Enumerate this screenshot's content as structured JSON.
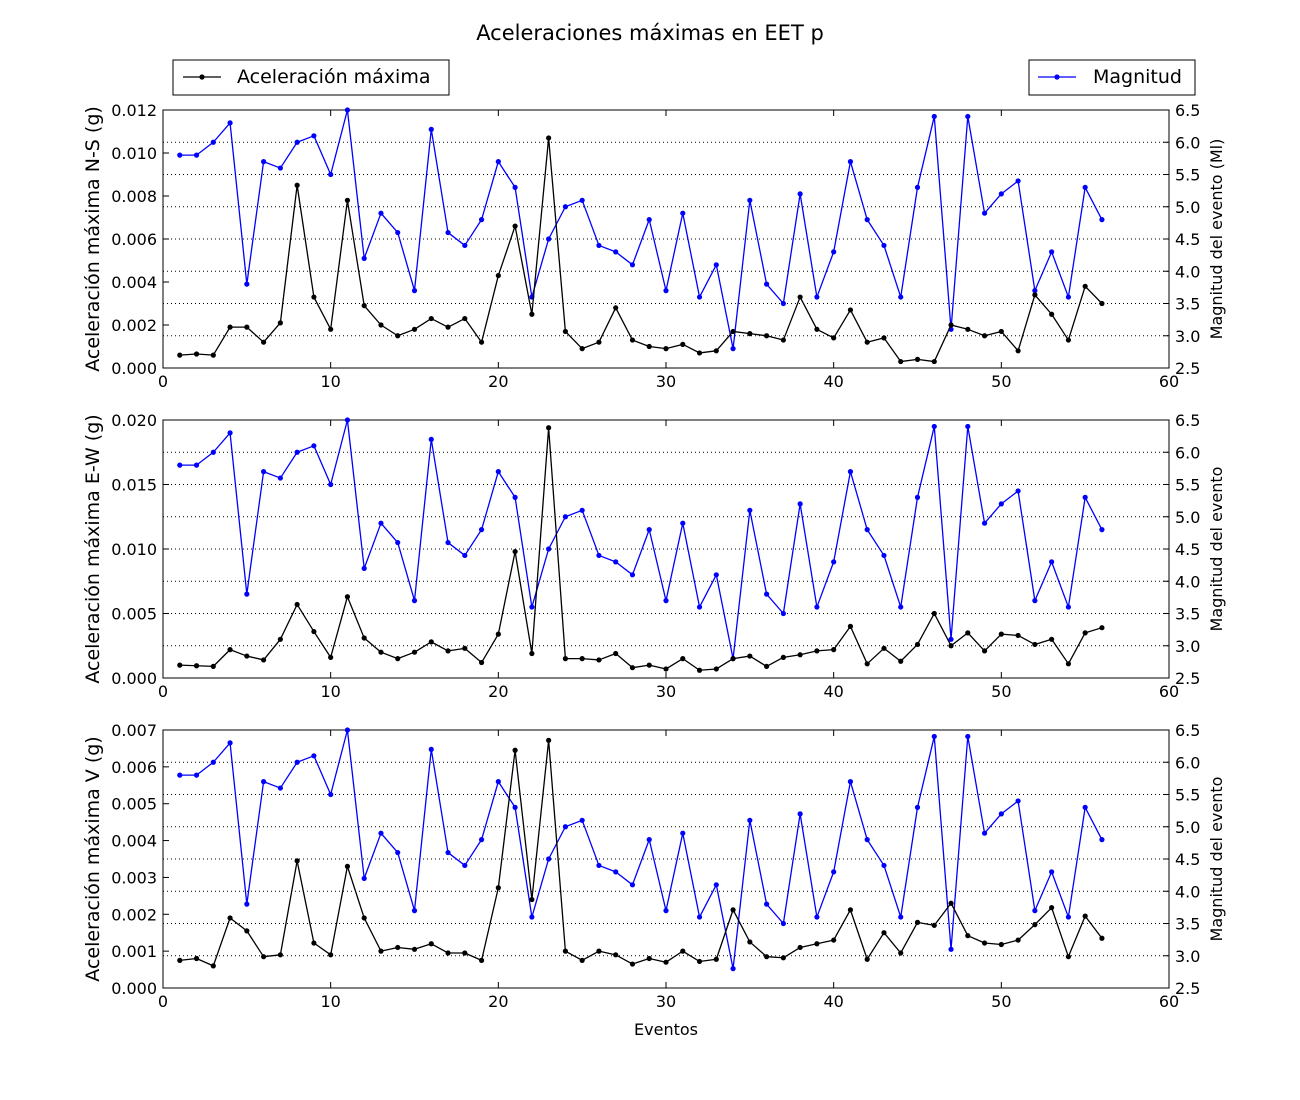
{
  "title": "Aceleraciones máximas en EET p",
  "legend": {
    "acc_label": "Aceleración máxima",
    "mag_label": "Magnitud"
  },
  "colors": {
    "acc": "#000000",
    "mag": "#0000ff",
    "grid": "#000000"
  },
  "chart_data": [
    {
      "type": "line",
      "panel": "N-S",
      "xlabel": "",
      "ylabel": "Aceleración máxima N-S (g)",
      "ylabel_right": "Magnitud del evento (Ml)",
      "xlim": [
        0,
        60
      ],
      "ylim": [
        0,
        0.012
      ],
      "ylim_right": [
        2.5,
        6.5
      ],
      "x_ticks": [
        "0",
        "10",
        "20",
        "30",
        "40",
        "50",
        "60"
      ],
      "y_ticks": [
        "0.000",
        "0.002",
        "0.004",
        "0.006",
        "0.008",
        "0.010",
        "0.012"
      ],
      "y_ticks_right": [
        "2.5",
        "3.0",
        "3.5",
        "4.0",
        "4.5",
        "5.0",
        "5.5",
        "6.0",
        "6.5"
      ],
      "grid": "horizontal dotted on right axis",
      "series": [
        {
          "name": "Aceleración máxima",
          "axis": "left",
          "color": "#000000",
          "values": [
            0.0006,
            0.00065,
            0.0006,
            0.0019,
            0.0019,
            0.0012,
            0.0021,
            0.0085,
            0.0033,
            0.0018,
            0.0078,
            0.0029,
            0.002,
            0.0015,
            0.0018,
            0.0023,
            0.0019,
            0.0023,
            0.0012,
            0.0043,
            0.0066,
            0.0025,
            0.0107,
            0.0017,
            0.0009,
            0.0012,
            0.0028,
            0.0013,
            0.001,
            0.0009,
            0.0011,
            0.0007,
            0.0008,
            0.0017,
            0.0016,
            0.0015,
            0.0013,
            0.0033,
            0.0018,
            0.0014,
            0.0027,
            0.0012,
            0.0014,
            0.0003,
            0.0004,
            0.0003,
            0.002,
            0.0018,
            0.0015,
            0.0017,
            0.0008,
            0.0034,
            0.0025,
            0.0013,
            0.0038,
            0.003
          ]
        },
        {
          "name": "Magnitud",
          "axis": "right",
          "color": "#0000ff",
          "values": [
            5.8,
            5.8,
            6.0,
            6.3,
            3.8,
            5.7,
            5.6,
            6.0,
            6.1,
            5.5,
            6.5,
            4.2,
            4.9,
            4.6,
            3.7,
            6.2,
            4.6,
            4.4,
            4.8,
            5.7,
            5.3,
            3.6,
            4.5,
            5.0,
            5.1,
            4.4,
            4.3,
            4.1,
            4.8,
            3.7,
            4.9,
            3.6,
            4.1,
            2.8,
            5.1,
            3.8,
            3.5,
            5.2,
            3.6,
            4.3,
            5.7,
            4.8,
            4.4,
            3.6,
            5.3,
            6.4,
            3.1,
            6.4,
            4.9,
            5.2,
            5.4,
            3.7,
            4.3,
            3.6,
            5.3,
            4.8
          ]
        }
      ]
    },
    {
      "type": "line",
      "panel": "E-W",
      "xlabel": "",
      "ylabel": "Aceleración máxima E-W (g)",
      "ylabel_right": "Magnitud del evento",
      "xlim": [
        0,
        60
      ],
      "ylim": [
        0,
        0.02
      ],
      "ylim_right": [
        2.5,
        6.5
      ],
      "x_ticks": [
        "0",
        "10",
        "20",
        "30",
        "40",
        "50",
        "60"
      ],
      "y_ticks": [
        "0.000",
        "0.005",
        "0.010",
        "0.015",
        "0.020"
      ],
      "y_ticks_right": [
        "2.5",
        "3.0",
        "3.5",
        "4.0",
        "4.5",
        "5.0",
        "5.5",
        "6.0",
        "6.5"
      ],
      "grid": "horizontal dotted on right axis",
      "series": [
        {
          "name": "Aceleración máxima",
          "axis": "left",
          "color": "#000000",
          "values": [
            0.001,
            0.00095,
            0.0009,
            0.0022,
            0.0017,
            0.0014,
            0.003,
            0.0057,
            0.0036,
            0.0016,
            0.0063,
            0.0031,
            0.002,
            0.0015,
            0.002,
            0.0028,
            0.0021,
            0.0023,
            0.0012,
            0.0034,
            0.0098,
            0.0019,
            0.0194,
            0.0015,
            0.0015,
            0.0014,
            0.0019,
            0.0008,
            0.001,
            0.0007,
            0.0015,
            0.0006,
            0.0007,
            0.0015,
            0.0017,
            0.0009,
            0.0016,
            0.0018,
            0.0021,
            0.0022,
            0.004,
            0.0011,
            0.0023,
            0.0013,
            0.0026,
            0.005,
            0.0025,
            0.0035,
            0.0021,
            0.0034,
            0.0033,
            0.0026,
            0.003,
            0.0011,
            0.0035,
            0.0039
          ]
        },
        {
          "name": "Magnitud",
          "axis": "right",
          "color": "#0000ff",
          "values": [
            5.8,
            5.8,
            6.0,
            6.3,
            3.8,
            5.7,
            5.6,
            6.0,
            6.1,
            5.5,
            6.5,
            4.2,
            4.9,
            4.6,
            3.7,
            6.2,
            4.6,
            4.4,
            4.8,
            5.7,
            5.3,
            3.6,
            4.5,
            5.0,
            5.1,
            4.4,
            4.3,
            4.1,
            4.8,
            3.7,
            4.9,
            3.6,
            4.1,
            2.8,
            5.1,
            3.8,
            3.5,
            5.2,
            3.6,
            4.3,
            5.7,
            4.8,
            4.4,
            3.6,
            5.3,
            6.4,
            3.1,
            6.4,
            4.9,
            5.2,
            5.4,
            3.7,
            4.3,
            3.6,
            5.3,
            4.8
          ]
        }
      ]
    },
    {
      "type": "line",
      "panel": "V",
      "xlabel": "Eventos",
      "ylabel": "Aceleración máxima V (g)",
      "ylabel_right": "Magnitud del evento",
      "xlim": [
        0,
        60
      ],
      "ylim": [
        0,
        0.007
      ],
      "ylim_right": [
        2.5,
        6.5
      ],
      "x_ticks": [
        "0",
        "10",
        "20",
        "30",
        "40",
        "50",
        "60"
      ],
      "y_ticks": [
        "0.000",
        "0.001",
        "0.002",
        "0.003",
        "0.004",
        "0.005",
        "0.006",
        "0.007"
      ],
      "y_ticks_right": [
        "2.5",
        "3.0",
        "3.5",
        "4.0",
        "4.5",
        "5.0",
        "5.5",
        "6.0",
        "6.5"
      ],
      "grid": "horizontal dotted on right axis",
      "series": [
        {
          "name": "Aceleración máxima",
          "axis": "left",
          "color": "#000000",
          "values": [
            0.00075,
            0.0008,
            0.0006,
            0.0019,
            0.00155,
            0.00085,
            0.0009,
            0.00345,
            0.00122,
            0.0009,
            0.0033,
            0.0019,
            0.001,
            0.0011,
            0.00105,
            0.0012,
            0.00095,
            0.00095,
            0.00075,
            0.00272,
            0.00645,
            0.0024,
            0.00672,
            0.001,
            0.00075,
            0.001,
            0.0009,
            0.00065,
            0.0008,
            0.0007,
            0.001,
            0.00072,
            0.00078,
            0.00212,
            0.00125,
            0.00085,
            0.00082,
            0.0011,
            0.0012,
            0.0013,
            0.00212,
            0.00078,
            0.0015,
            0.00095,
            0.00178,
            0.0017,
            0.0023,
            0.00142,
            0.00122,
            0.00118,
            0.0013,
            0.00172,
            0.00218,
            0.00085,
            0.00195,
            0.00135
          ]
        },
        {
          "name": "Magnitud",
          "axis": "right",
          "color": "#0000ff",
          "values": [
            5.8,
            5.8,
            6.0,
            6.3,
            3.8,
            5.7,
            5.6,
            6.0,
            6.1,
            5.5,
            6.5,
            4.2,
            4.9,
            4.6,
            3.7,
            6.2,
            4.6,
            4.4,
            4.8,
            5.7,
            5.3,
            3.6,
            4.5,
            5.0,
            5.1,
            4.4,
            4.3,
            4.1,
            4.8,
            3.7,
            4.9,
            3.6,
            4.1,
            2.8,
            5.1,
            3.8,
            3.5,
            5.2,
            3.6,
            4.3,
            5.7,
            4.8,
            4.4,
            3.6,
            5.3,
            6.4,
            3.1,
            6.4,
            4.9,
            5.2,
            5.4,
            3.7,
            4.3,
            3.6,
            5.3,
            4.8
          ]
        }
      ]
    }
  ]
}
